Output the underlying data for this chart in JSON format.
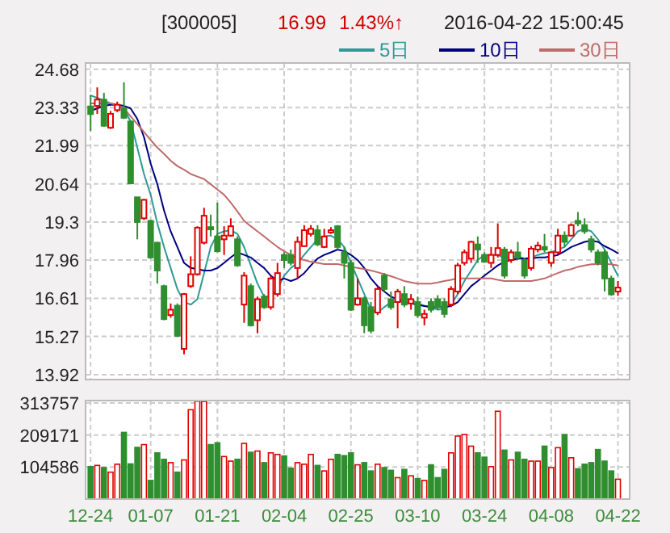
{
  "chart_data": [
    {
      "type": "candlestick",
      "title": "[300005]",
      "annotations": [
        "16.99",
        "1.43%↑",
        "2016-04-22 15:00:45"
      ],
      "ohlc": [
        [
          23.37,
          23.76,
          22.51,
          23.1
        ],
        [
          23.39,
          24.04,
          23.11,
          23.61
        ],
        [
          23.61,
          23.85,
          22.65,
          22.69
        ],
        [
          22.62,
          23.21,
          22.58,
          23.11
        ],
        [
          23.24,
          23.54,
          23.17,
          23.43
        ],
        [
          23.3,
          24.22,
          22.93,
          22.97
        ],
        [
          22.84,
          22.88,
          20.66,
          20.66
        ],
        [
          20.17,
          20.17,
          18.69,
          19.3
        ],
        [
          19.43,
          20.11,
          19.37,
          20.08
        ],
        [
          19.34,
          19.37,
          18.01,
          18.05
        ],
        [
          18.57,
          18.6,
          17.13,
          17.59
        ],
        [
          17.04,
          17.09,
          15.84,
          15.88
        ],
        [
          16.02,
          16.43,
          15.93,
          16.21
        ],
        [
          16.35,
          16.43,
          15.25,
          15.29
        ],
        [
          14.83,
          16.8,
          14.64,
          16.76
        ],
        [
          17.04,
          18.09,
          16.98,
          17.46
        ],
        [
          17.46,
          19.15,
          17.41,
          19.1
        ],
        [
          18.57,
          19.8,
          18.51,
          19.52
        ],
        [
          19.12,
          19.56,
          18.79,
          19.04
        ],
        [
          18.79,
          19.98,
          18.23,
          18.27
        ],
        [
          18.69,
          19.15,
          18.14,
          18.82
        ],
        [
          18.82,
          19.43,
          18.79,
          19.15
        ],
        [
          18.69,
          18.79,
          17.72,
          17.77
        ],
        [
          16.39,
          17.53,
          15.75,
          17.41
        ],
        [
          17.04,
          17.13,
          15.62,
          15.66
        ],
        [
          15.84,
          16.67,
          15.38,
          16.58
        ],
        [
          16.67,
          16.76,
          16.24,
          16.3
        ],
        [
          16.3,
          17.41,
          16.21,
          17.31
        ],
        [
          16.76,
          17.86,
          16.67,
          17.5
        ],
        [
          18.14,
          18.23,
          17.68,
          17.96
        ],
        [
          18.14,
          18.33,
          17.77,
          17.86
        ],
        [
          17.68,
          18.79,
          17.31,
          18.6
        ],
        [
          18.45,
          19.19,
          18.42,
          19.01
        ],
        [
          18.88,
          19.19,
          18.79,
          19.06
        ],
        [
          19.01,
          19.19,
          18.45,
          18.51
        ],
        [
          18.42,
          19.06,
          18.38,
          18.79
        ],
        [
          18.93,
          19.12,
          18.88,
          19.01
        ],
        [
          19.15,
          19.19,
          18.33,
          18.42
        ],
        [
          18.23,
          18.42,
          17.31,
          17.86
        ],
        [
          17.86,
          17.96,
          16.17,
          16.21
        ],
        [
          16.39,
          17.31,
          16.35,
          16.61
        ],
        [
          16.61,
          16.67,
          15.38,
          15.66
        ],
        [
          16.3,
          16.48,
          15.38,
          15.47
        ],
        [
          16.11,
          17.04,
          16.02,
          16.94
        ],
        [
          17.41,
          17.5,
          16.85,
          16.94
        ],
        [
          16.58,
          16.85,
          16.21,
          16.3
        ],
        [
          16.48,
          16.94,
          15.56,
          16.85
        ],
        [
          16.76,
          17.04,
          16.3,
          16.39
        ],
        [
          16.43,
          16.76,
          16.21,
          16.58
        ],
        [
          16.48,
          16.67,
          15.93,
          16.02
        ],
        [
          15.93,
          16.21,
          15.66,
          16.06
        ],
        [
          16.48,
          16.61,
          16.11,
          16.21
        ],
        [
          16.58,
          16.72,
          16.21,
          16.3
        ],
        [
          16.48,
          16.61,
          15.93,
          16.06
        ],
        [
          16.39,
          17.04,
          16.3,
          16.94
        ],
        [
          16.85,
          17.86,
          16.76,
          17.77
        ],
        [
          17.86,
          18.33,
          17.77,
          18.23
        ],
        [
          18.01,
          18.64,
          17.86,
          18.6
        ],
        [
          18.51,
          18.79,
          17.86,
          18.33
        ],
        [
          18.14,
          18.23,
          17.86,
          17.9
        ],
        [
          17.86,
          18.42,
          17.68,
          18.14
        ],
        [
          18.14,
          19.25,
          18.05,
          18.38
        ],
        [
          18.33,
          18.42,
          17.31,
          17.41
        ],
        [
          17.96,
          18.33,
          17.86,
          18.23
        ],
        [
          18.23,
          18.6,
          17.96,
          18.05
        ],
        [
          17.96,
          18.05,
          17.31,
          17.41
        ],
        [
          17.68,
          18.45,
          17.59,
          18.36
        ],
        [
          18.33,
          18.6,
          18.23,
          18.47
        ],
        [
          18.42,
          18.88,
          18.23,
          18.33
        ],
        [
          17.86,
          18.27,
          17.72,
          18.23
        ],
        [
          18.23,
          19.06,
          18.14,
          18.82
        ],
        [
          18.82,
          18.97,
          18.42,
          18.6
        ],
        [
          18.82,
          19.25,
          18.79,
          19.19
        ],
        [
          19.34,
          19.65,
          19.15,
          19.25
        ],
        [
          19.19,
          19.43,
          18.88,
          18.97
        ],
        [
          18.69,
          18.82,
          18.23,
          18.33
        ],
        [
          18.23,
          18.33,
          17.77,
          17.86
        ],
        [
          18.23,
          18.33,
          16.85,
          17.31
        ],
        [
          17.31,
          17.41,
          16.7,
          16.75
        ],
        [
          16.85,
          17.22,
          16.7,
          16.99
        ]
      ],
      "colors": [
        "#2f8f2f",
        "#e00000",
        "#2f8f2f",
        "#e00000",
        "#e00000",
        "#2f8f2f",
        "#2f8f2f",
        "#2f8f2f",
        "#e00000",
        "#2f8f2f",
        "#2f8f2f",
        "#2f8f2f",
        "#e00000",
        "#2f8f2f",
        "#e00000",
        "#e00000",
        "#e00000",
        "#e00000",
        "#2f8f2f",
        "#2f8f2f",
        "#e00000",
        "#e00000",
        "#2f8f2f",
        "#e00000",
        "#2f8f2f",
        "#e00000",
        "#2f8f2f",
        "#e00000",
        "#e00000",
        "#2f8f2f",
        "#2f8f2f",
        "#e00000",
        "#e00000",
        "#e00000",
        "#2f8f2f",
        "#e00000",
        "#e00000",
        "#2f8f2f",
        "#2f8f2f",
        "#2f8f2f",
        "#e00000",
        "#2f8f2f",
        "#2f8f2f",
        "#e00000",
        "#2f8f2f",
        "#2f8f2f",
        "#e00000",
        "#2f8f2f",
        "#e00000",
        "#2f8f2f",
        "#e00000",
        "#2f8f2f",
        "#2f8f2f",
        "#2f8f2f",
        "#e00000",
        "#e00000",
        "#e00000",
        "#e00000",
        "#2f8f2f",
        "#2f8f2f",
        "#e00000",
        "#e00000",
        "#2f8f2f",
        "#e00000",
        "#2f8f2f",
        "#2f8f2f",
        "#e00000",
        "#e00000",
        "#2f8f2f",
        "#e00000",
        "#e00000",
        "#2f8f2f",
        "#e00000",
        "#2f8f2f",
        "#2f8f2f",
        "#2f8f2f",
        "#2f8f2f",
        "#2f8f2f",
        "#2f8f2f",
        "#e00000"
      ],
      "series": [
        {
          "name": "5日",
          "type": "line",
          "color": "#2e9a96",
          "values": [
            23.76,
            23.67,
            23.57,
            23.48,
            23.43,
            23.3,
            22.84,
            21.92,
            20.99,
            20.26,
            19.25,
            18.42,
            17.68,
            16.94,
            16.48,
            16.39,
            16.58,
            17.5,
            18.42,
            18.88,
            18.97,
            19.01,
            18.88,
            18.42,
            17.77,
            17.13,
            16.67,
            16.67,
            16.94,
            17.41,
            17.68,
            17.86,
            18.14,
            18.42,
            18.69,
            18.79,
            18.82,
            18.69,
            18.42,
            17.86,
            17.31,
            16.76,
            16.21,
            16.11,
            16.3,
            16.48,
            16.48,
            16.58,
            16.58,
            16.43,
            16.35,
            16.3,
            16.21,
            16.24,
            16.39,
            16.76,
            17.22,
            17.59,
            17.96,
            18.14,
            18.14,
            18.14,
            18.01,
            18.05,
            18.09,
            18.01,
            18.05,
            18.14,
            18.2,
            18.23,
            18.33,
            18.42,
            18.69,
            18.97,
            19.06,
            18.97,
            18.69,
            18.33,
            17.86,
            17.41
          ]
        },
        {
          "name": "10日",
          "type": "line",
          "color": "#000080",
          "values": [
            23.21,
            23.3,
            23.39,
            23.43,
            23.43,
            23.39,
            23.3,
            22.93,
            22.29,
            21.36,
            20.63,
            19.71,
            18.97,
            18.42,
            17.86,
            17.68,
            17.64,
            17.59,
            17.59,
            17.68,
            17.86,
            18.05,
            18.23,
            18.14,
            18.05,
            17.86,
            17.68,
            17.41,
            17.22,
            17.31,
            17.22,
            17.31,
            17.5,
            17.77,
            18.01,
            18.14,
            18.23,
            18.33,
            18.27,
            18.14,
            17.96,
            17.68,
            17.31,
            17.04,
            16.85,
            16.67,
            16.58,
            16.48,
            16.43,
            16.39,
            16.34,
            16.3,
            16.3,
            16.3,
            16.34,
            16.48,
            16.76,
            17.04,
            17.22,
            17.41,
            17.59,
            17.77,
            17.9,
            17.96,
            18.01,
            18.01,
            18.01,
            18.05,
            18.05,
            18.09,
            18.14,
            18.27,
            18.42,
            18.51,
            18.6,
            18.64,
            18.6,
            18.45,
            18.33,
            18.2
          ]
        },
        {
          "name": "30日",
          "type": "line",
          "color": "#c06a6a",
          "values": [
            23.48,
            23.48,
            23.48,
            23.48,
            23.43,
            23.3,
            23.02,
            22.75,
            22.47,
            22.19,
            21.92,
            21.7,
            21.46,
            21.27,
            21.14,
            20.99,
            20.9,
            20.81,
            20.63,
            20.44,
            20.26,
            19.98,
            19.67,
            19.34,
            19.15,
            18.97,
            18.79,
            18.6,
            18.42,
            18.27,
            18.14,
            18.01,
            17.96,
            17.9,
            17.86,
            17.82,
            17.82,
            17.82,
            17.77,
            17.72,
            17.68,
            17.64,
            17.59,
            17.53,
            17.46,
            17.39,
            17.31,
            17.22,
            17.17,
            17.13,
            17.13,
            17.13,
            17.17,
            17.22,
            17.26,
            17.31,
            17.31,
            17.31,
            17.31,
            17.31,
            17.31,
            17.26,
            17.22,
            17.22,
            17.22,
            17.22,
            17.22,
            17.26,
            17.31,
            17.41,
            17.5,
            17.59,
            17.64,
            17.72,
            17.77,
            17.81,
            17.82,
            17.82,
            17.81,
            17.77
          ]
        }
      ],
      "ylim": [
        13.75,
        24.9
      ],
      "yticks": [
        24.68,
        23.33,
        21.99,
        20.64,
        19.3,
        17.96,
        16.61,
        15.27,
        13.92
      ],
      "grid": true,
      "legend": "top right",
      "tick_labels": "y"
    },
    {
      "type": "bar",
      "categories": [
        "12-24",
        null,
        null,
        null,
        null,
        null,
        null,
        null,
        null,
        "01-07",
        null,
        null,
        null,
        null,
        null,
        null,
        null,
        null,
        null,
        "01-21",
        null,
        null,
        null,
        null,
        null,
        null,
        null,
        null,
        null,
        "02-04",
        null,
        null,
        null,
        null,
        null,
        null,
        null,
        null,
        null,
        "02-25",
        null,
        null,
        null,
        null,
        null,
        null,
        null,
        null,
        null,
        "03-10",
        null,
        null,
        null,
        null,
        null,
        null,
        null,
        null,
        null,
        "03-24",
        null,
        null,
        null,
        null,
        null,
        null,
        null,
        null,
        null,
        "04-08",
        null,
        null,
        null,
        null,
        null,
        null,
        null,
        null,
        null,
        "04-22"
      ],
      "values": [
        106000,
        110000,
        103000,
        88000,
        114000,
        218000,
        115000,
        169000,
        178000,
        61000,
        151000,
        130000,
        119000,
        88000,
        128000,
        292000,
        320000,
        319000,
        178000,
        184000,
        139000,
        124000,
        130000,
        182000,
        153000,
        157000,
        119000,
        151000,
        146000,
        141000,
        101000,
        119000,
        114000,
        146000,
        110000,
        92000,
        130000,
        146000,
        142000,
        151000,
        112000,
        119000,
        92000,
        114000,
        103000,
        94000,
        70000,
        97000,
        76000,
        67000,
        61000,
        112000,
        70000,
        97000,
        151000,
        206000,
        211000,
        173000,
        151000,
        137000,
        106000,
        287000,
        160000,
        128000,
        153000,
        130000,
        124000,
        124000,
        173000,
        103000,
        168000,
        211000,
        135000,
        99000,
        114000,
        119000,
        162000,
        124000,
        92000,
        65000
      ],
      "colors": [
        "#2f8f2f",
        "#e00000",
        "#2f8f2f",
        "#e00000",
        "#e00000",
        "#2f8f2f",
        "#2f8f2f",
        "#2f8f2f",
        "#e00000",
        "#2f8f2f",
        "#2f8f2f",
        "#2f8f2f",
        "#e00000",
        "#2f8f2f",
        "#e00000",
        "#e00000",
        "#e00000",
        "#e00000",
        "#2f8f2f",
        "#2f8f2f",
        "#e00000",
        "#e00000",
        "#2f8f2f",
        "#e00000",
        "#2f8f2f",
        "#e00000",
        "#2f8f2f",
        "#e00000",
        "#e00000",
        "#2f8f2f",
        "#2f8f2f",
        "#e00000",
        "#e00000",
        "#e00000",
        "#2f8f2f",
        "#e00000",
        "#e00000",
        "#2f8f2f",
        "#2f8f2f",
        "#2f8f2f",
        "#e00000",
        "#2f8f2f",
        "#2f8f2f",
        "#e00000",
        "#2f8f2f",
        "#2f8f2f",
        "#e00000",
        "#2f8f2f",
        "#e00000",
        "#2f8f2f",
        "#e00000",
        "#2f8f2f",
        "#2f8f2f",
        "#2f8f2f",
        "#e00000",
        "#e00000",
        "#e00000",
        "#e00000",
        "#2f8f2f",
        "#2f8f2f",
        "#e00000",
        "#e00000",
        "#2f8f2f",
        "#e00000",
        "#2f8f2f",
        "#2f8f2f",
        "#e00000",
        "#e00000",
        "#2f8f2f",
        "#e00000",
        "#e00000",
        "#2f8f2f",
        "#e00000",
        "#2f8f2f",
        "#2f8f2f",
        "#2f8f2f",
        "#2f8f2f",
        "#2f8f2f",
        "#2f8f2f",
        "#e00000"
      ],
      "ylim": [
        0,
        322000
      ],
      "yticks": [
        104586,
        209171,
        313757
      ],
      "grid": true
    }
  ]
}
